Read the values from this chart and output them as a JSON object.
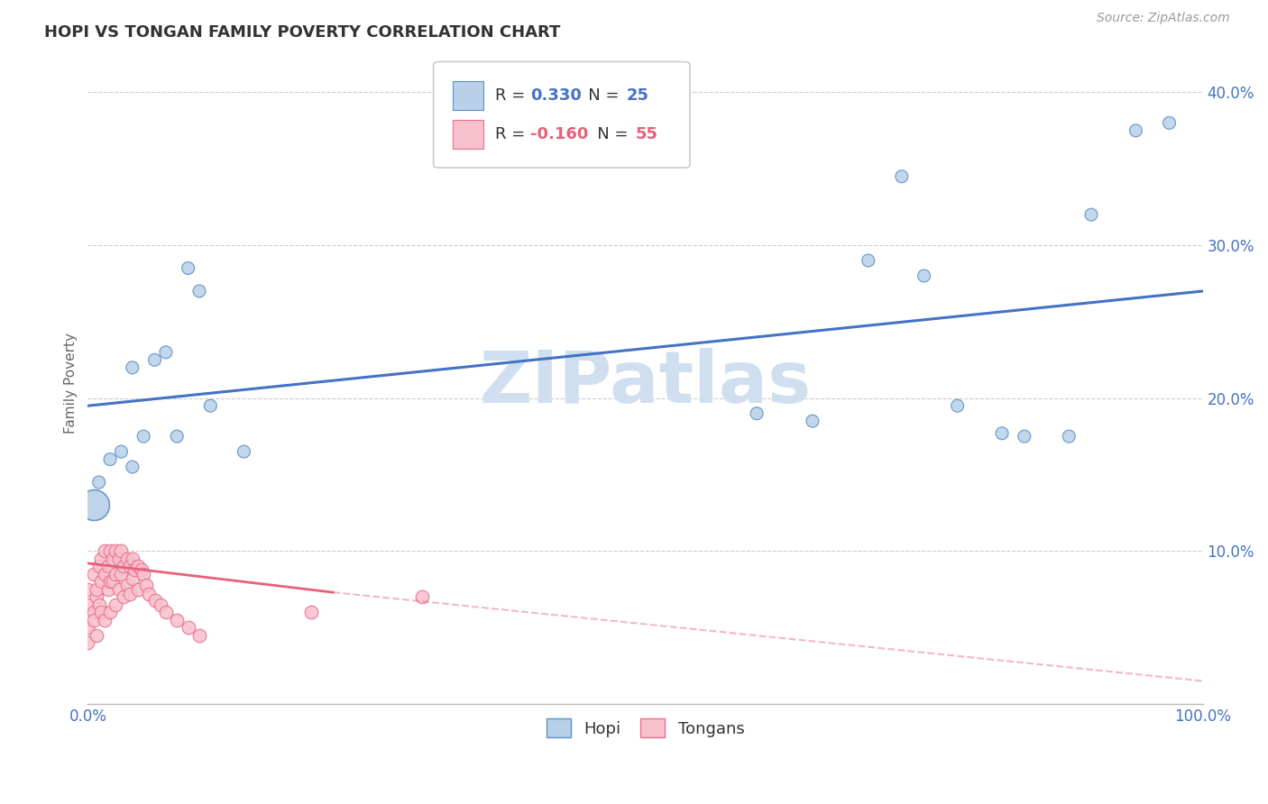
{
  "title": "HOPI VS TONGAN FAMILY POVERTY CORRELATION CHART",
  "source": "Source: ZipAtlas.com",
  "ylabel": "Family Poverty",
  "ytick_positions": [
    0.0,
    0.1,
    0.2,
    0.3,
    0.4
  ],
  "ytick_labels": [
    "",
    "10.0%",
    "20.0%",
    "30.0%",
    "40.0%"
  ],
  "xtick_positions": [
    0.0,
    1.0
  ],
  "xtick_labels": [
    "0.0%",
    "100.0%"
  ],
  "legend_r_hopi": "0.330",
  "legend_n_hopi": "25",
  "legend_r_tongan": "-0.160",
  "legend_n_tongan": "55",
  "hopi_fill_color": "#b8d0e8",
  "tongan_fill_color": "#f8c0cc",
  "hopi_edge_color": "#6090c8",
  "tongan_edge_color": "#e87090",
  "hopi_line_color": "#4472c4",
  "tongan_line_color": "#e8607a",
  "watermark_text": "ZIPatlas",
  "watermark_color": "#d0dff0",
  "hopi_scatter_x": [
    0.01,
    0.02,
    0.03,
    0.04,
    0.04,
    0.05,
    0.06,
    0.07,
    0.08,
    0.09,
    0.1,
    0.11,
    0.14,
    0.6,
    0.65,
    0.7,
    0.73,
    0.75,
    0.78,
    0.82,
    0.84,
    0.88,
    0.9,
    0.94,
    0.97
  ],
  "hopi_scatter_y": [
    0.145,
    0.16,
    0.165,
    0.22,
    0.155,
    0.175,
    0.225,
    0.23,
    0.175,
    0.285,
    0.27,
    0.195,
    0.165,
    0.19,
    0.185,
    0.29,
    0.345,
    0.28,
    0.195,
    0.177,
    0.175,
    0.175,
    0.32,
    0.375,
    0.38
  ],
  "hopi_scatter_sizes": [
    100,
    100,
    100,
    100,
    100,
    100,
    100,
    100,
    100,
    100,
    100,
    100,
    100,
    100,
    100,
    100,
    100,
    100,
    100,
    100,
    100,
    100,
    100,
    100,
    100
  ],
  "tongan_scatter_x": [
    0.0,
    0.0,
    0.0,
    0.0,
    0.005,
    0.005,
    0.005,
    0.008,
    0.008,
    0.008,
    0.01,
    0.01,
    0.012,
    0.012,
    0.012,
    0.015,
    0.015,
    0.015,
    0.018,
    0.018,
    0.02,
    0.02,
    0.02,
    0.022,
    0.022,
    0.025,
    0.025,
    0.025,
    0.028,
    0.028,
    0.03,
    0.03,
    0.032,
    0.032,
    0.035,
    0.035,
    0.038,
    0.038,
    0.04,
    0.04,
    0.042,
    0.045,
    0.045,
    0.048,
    0.05,
    0.052,
    0.055,
    0.06,
    0.065,
    0.07,
    0.08,
    0.09,
    0.1,
    0.2,
    0.3
  ],
  "tongan_scatter_y": [
    0.065,
    0.05,
    0.075,
    0.04,
    0.085,
    0.06,
    0.055,
    0.07,
    0.045,
    0.075,
    0.09,
    0.065,
    0.095,
    0.08,
    0.06,
    0.1,
    0.085,
    0.055,
    0.09,
    0.075,
    0.1,
    0.08,
    0.06,
    0.095,
    0.08,
    0.1,
    0.085,
    0.065,
    0.095,
    0.075,
    0.1,
    0.085,
    0.09,
    0.07,
    0.095,
    0.078,
    0.09,
    0.072,
    0.095,
    0.082,
    0.088,
    0.09,
    0.075,
    0.088,
    0.085,
    0.078,
    0.072,
    0.068,
    0.065,
    0.06,
    0.055,
    0.05,
    0.045,
    0.06,
    0.07
  ],
  "hopi_trendline": [
    [
      0.0,
      1.0
    ],
    [
      0.195,
      0.27
    ]
  ],
  "tongan_trendline_solid": [
    [
      0.0,
      0.22
    ],
    [
      0.092,
      0.073
    ]
  ],
  "tongan_trendline_dashed": [
    [
      0.22,
      1.0
    ],
    [
      0.073,
      0.015
    ]
  ],
  "background_color": "#ffffff",
  "grid_color": "#cccccc",
  "xlim": [
    0.0,
    1.0
  ],
  "ylim": [
    0.0,
    0.42
  ],
  "axis_label_color": "#4472c4",
  "title_color": "#333333",
  "source_color": "#999999",
  "ylabel_color": "#666666"
}
